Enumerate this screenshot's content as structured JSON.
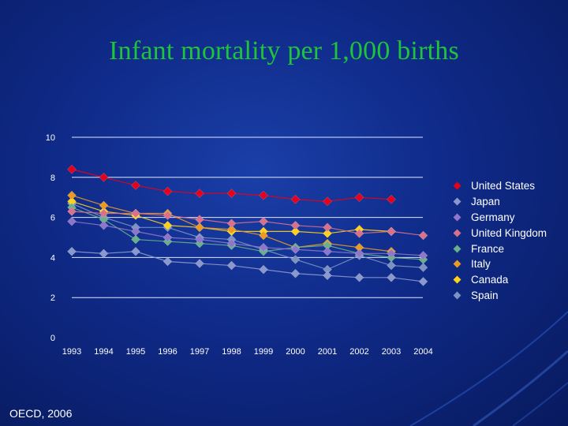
{
  "slide": {
    "title": "Infant mortality per 1,000 births",
    "source": "OECD, 2006"
  },
  "chart_data": {
    "type": "line",
    "title": "Infant mortality per 1,000 births",
    "xlabel": "",
    "ylabel": "",
    "ylim": [
      0,
      10
    ],
    "yticks": [
      0,
      2,
      4,
      6,
      8,
      10
    ],
    "grid": true,
    "legend_position": "right",
    "categories": [
      "1993",
      "1994",
      "1995",
      "1996",
      "1997",
      "1998",
      "1999",
      "2000",
      "2001",
      "2002",
      "2003",
      "2004"
    ],
    "series": [
      {
        "name": "United States",
        "color": "#e8001a",
        "values": [
          8.4,
          8.0,
          7.6,
          7.3,
          7.2,
          7.2,
          7.1,
          6.9,
          6.8,
          7.0,
          6.9,
          null
        ]
      },
      {
        "name": "Japan",
        "color": "#8a98cc",
        "values": [
          4.3,
          4.2,
          4.3,
          3.8,
          3.7,
          3.6,
          3.4,
          3.2,
          3.1,
          3.0,
          3.0,
          2.8
        ]
      },
      {
        "name": "Germany",
        "color": "#8f76c8",
        "values": [
          5.8,
          5.6,
          5.3,
          5.0,
          4.9,
          4.7,
          4.5,
          4.4,
          4.3,
          4.2,
          4.2,
          4.1
        ]
      },
      {
        "name": "United Kingdom",
        "color": "#d8718c",
        "values": [
          6.3,
          6.2,
          6.2,
          6.1,
          5.9,
          5.7,
          5.8,
          5.6,
          5.5,
          5.2,
          5.3,
          5.1
        ]
      },
      {
        "name": "France",
        "color": "#68b08a",
        "values": [
          6.5,
          5.9,
          4.9,
          4.8,
          4.7,
          4.6,
          4.3,
          4.5,
          4.6,
          4.2,
          4.0,
          3.9
        ]
      },
      {
        "name": "Italy",
        "color": "#e89a24",
        "values": [
          7.1,
          6.6,
          6.2,
          6.2,
          5.5,
          5.4,
          5.1,
          4.5,
          4.7,
          4.5,
          4.3,
          null
        ]
      },
      {
        "name": "Canada",
        "color": "#ffd21a",
        "values": [
          6.8,
          6.3,
          6.1,
          5.6,
          5.5,
          5.3,
          5.3,
          5.3,
          5.2,
          5.4,
          5.3,
          null
        ]
      },
      {
        "name": "Spain",
        "color": "#7c92c2",
        "values": [
          6.7,
          6.0,
          5.5,
          5.5,
          5.0,
          4.9,
          4.4,
          3.9,
          3.4,
          4.1,
          3.6,
          3.5
        ]
      }
    ]
  }
}
